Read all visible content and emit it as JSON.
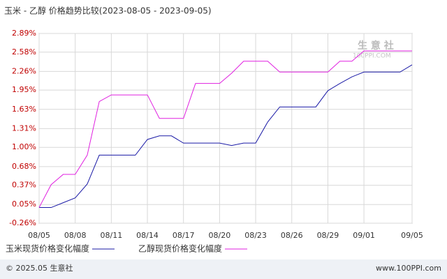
{
  "chart_data": {
    "type": "line",
    "title": "玉米 - 乙醇 价格趋势比较(2023-08-05 - 2023-09-05)",
    "categories": [
      "08/05",
      null,
      null,
      "08/08",
      null,
      null,
      "08/11",
      null,
      null,
      "08/14",
      null,
      null,
      "08/17",
      null,
      null,
      "08/20",
      null,
      null,
      "08/23",
      null,
      null,
      "08/26",
      null,
      null,
      "08/29",
      null,
      null,
      "09/01",
      null,
      null,
      null,
      "09/05"
    ],
    "series": [
      {
        "name": "玉米现货价格变化幅度",
        "color": "#1a1aa6",
        "values": [
          0,
          0,
          0.08,
          0.16,
          0.39,
          0.87,
          0.87,
          0.87,
          0.87,
          1.13,
          1.19,
          1.19,
          1.07,
          1.07,
          1.07,
          1.07,
          1.03,
          1.07,
          1.07,
          1.42,
          1.67,
          1.67,
          1.67,
          1.67,
          1.94,
          2.06,
          2.17,
          2.25,
          2.25,
          2.25,
          2.25,
          2.37
        ]
      },
      {
        "name": "乙醇现货价格变化幅度",
        "color": "#e020e0",
        "values": [
          0,
          0.38,
          0.55,
          0.55,
          0.87,
          1.76,
          1.87,
          1.87,
          1.87,
          1.87,
          1.48,
          1.48,
          1.48,
          2.06,
          2.06,
          2.06,
          2.23,
          2.43,
          2.43,
          2.43,
          2.25,
          2.25,
          2.25,
          2.25,
          2.25,
          2.43,
          2.43,
          2.6,
          2.6,
          2.6,
          2.6,
          2.6
        ]
      }
    ],
    "ylim": [
      -0.26,
      2.89
    ],
    "yticks": [
      {
        "value": -0.26,
        "label": "-0.26%"
      },
      {
        "value": 0.05,
        "label": "0.05%"
      },
      {
        "value": 0.37,
        "label": "0.37%"
      },
      {
        "value": 0.68,
        "label": "0.68%"
      },
      {
        "value": 1.0,
        "label": "1.00%"
      },
      {
        "value": 1.31,
        "label": "1.31%"
      },
      {
        "value": 1.63,
        "label": "1.63%"
      },
      {
        "value": 1.95,
        "label": "1.95%"
      },
      {
        "value": 2.26,
        "label": "2.26%"
      },
      {
        "value": 2.58,
        "label": "2.58%"
      },
      {
        "value": 2.89,
        "label": "2.89%"
      }
    ],
    "grid": true,
    "watermark": [
      "生 意 社",
      "100PPI.COM"
    ],
    "footer": {
      "left": "© 2025.05 生意社",
      "right": "www.100PPI.com"
    }
  }
}
